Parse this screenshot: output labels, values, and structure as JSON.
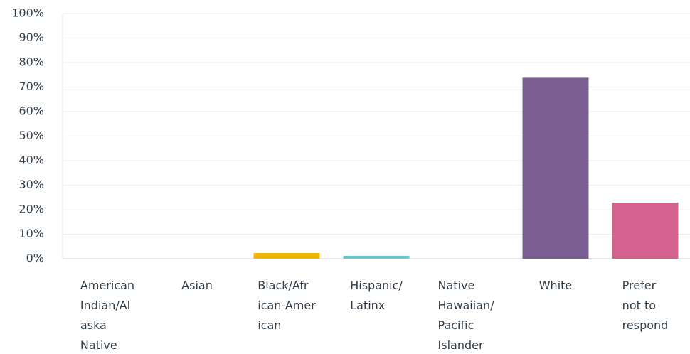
{
  "chart_data": {
    "type": "bar",
    "categories": [
      "American Indian/Alaska Native",
      "Asian",
      "Black/African-American",
      "Hispanic/Latinx",
      "Native Hawaiian/Pacific Islander",
      "White",
      "Prefer not to respond"
    ],
    "values": [
      0,
      0,
      2.3,
      1.2,
      0,
      73.8,
      22.9
    ],
    "colors": [
      "#00bf6f",
      "#007faa",
      "#f2b705",
      "#6bc8cd",
      "#f05b24",
      "#7b5e91",
      "#d5618f"
    ],
    "ylim": [
      0,
      100
    ],
    "yticks": [
      {
        "value": 0,
        "label": "0%"
      },
      {
        "value": 10,
        "label": "10%"
      },
      {
        "value": 20,
        "label": "20%"
      },
      {
        "value": 30,
        "label": "30%"
      },
      {
        "value": 40,
        "label": "40%"
      },
      {
        "value": 50,
        "label": "50%"
      },
      {
        "value": 60,
        "label": "60%"
      },
      {
        "value": 70,
        "label": "70%"
      },
      {
        "value": 80,
        "label": "80%"
      },
      {
        "value": 90,
        "label": "90%"
      },
      {
        "value": 100,
        "label": "100%"
      }
    ],
    "grid": true
  }
}
